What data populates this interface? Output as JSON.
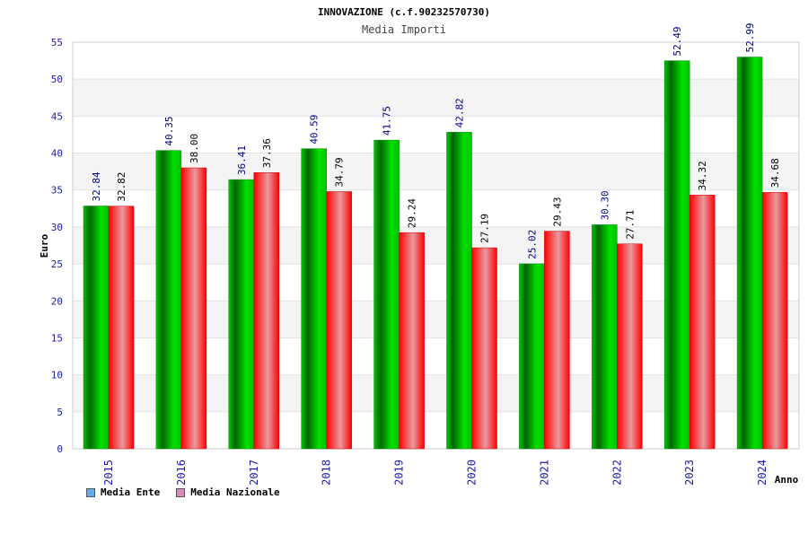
{
  "chart_data": {
    "type": "bar",
    "title": "INNOVAZIONE (c.f.90232570730)",
    "subtitle": "Media Importi",
    "xlabel": "Anno",
    "ylabel": "Euro",
    "ylim": [
      0,
      55
    ],
    "yticks": [
      0,
      5,
      10,
      15,
      20,
      25,
      30,
      35,
      40,
      45,
      50,
      55
    ],
    "grid": true,
    "legend_position": "bottom-left",
    "categories": [
      "2015",
      "2016",
      "2017",
      "2018",
      "2019",
      "2020",
      "2021",
      "2022",
      "2023",
      "2024"
    ],
    "series": [
      {
        "name": "Media Ente",
        "values": [
          32.84,
          40.35,
          36.41,
          40.59,
          41.75,
          42.82,
          25.02,
          30.3,
          52.49,
          52.99
        ],
        "labels": [
          "32.84",
          "40.35",
          "36.41",
          "40.59",
          "41.75",
          "42.82",
          "25.02",
          "30.30",
          "52.49",
          "52.99"
        ],
        "color": "#00cc00",
        "legend_color": "#66aaee"
      },
      {
        "name": "Media Nazionale",
        "values": [
          32.82,
          38.0,
          37.36,
          34.79,
          29.24,
          27.19,
          29.43,
          27.71,
          34.32,
          34.68
        ],
        "labels": [
          "32.82",
          "38.00",
          "37.36",
          "34.79",
          "29.24",
          "27.19",
          "29.43",
          "27.71",
          "34.32",
          "34.68"
        ],
        "color": "#ff0000",
        "legend_color": "#dd88bb"
      }
    ]
  }
}
